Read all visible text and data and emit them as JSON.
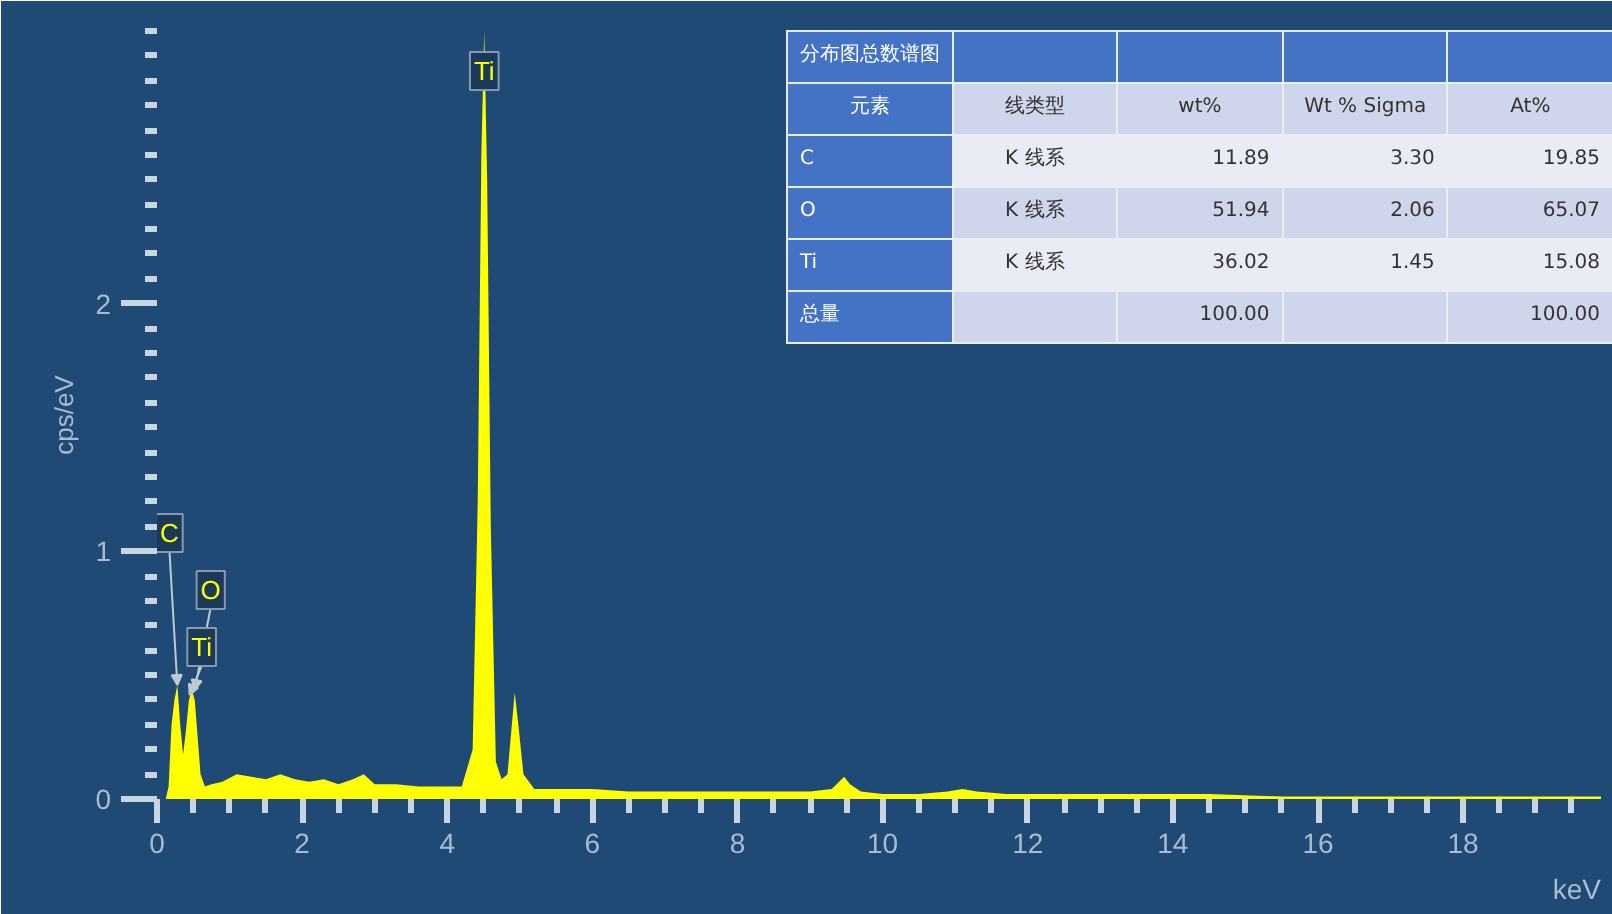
{
  "chart_data": {
    "type": "area",
    "xlabel": "keV",
    "ylabel": "cps/eV",
    "x": [
      0,
      0.12,
      0.16,
      0.2,
      0.24,
      0.28,
      0.32,
      0.36,
      0.4,
      0.44,
      0.48,
      0.52,
      0.56,
      0.6,
      0.66,
      0.75,
      0.9,
      1.1,
      1.3,
      1.5,
      1.7,
      1.9,
      2.1,
      2.3,
      2.5,
      2.7,
      2.85,
      3.0,
      3.3,
      3.6,
      3.9,
      4.2,
      4.35,
      4.42,
      4.47,
      4.51,
      4.55,
      4.6,
      4.67,
      4.75,
      4.83,
      4.89,
      4.93,
      4.98,
      5.05,
      5.2,
      5.6,
      6.0,
      6.5,
      7.0,
      7.5,
      8.0,
      8.5,
      9.0,
      9.3,
      9.4,
      9.47,
      9.55,
      9.7,
      10.0,
      10.5,
      10.9,
      11.1,
      11.3,
      11.7,
      12.5,
      13.5,
      14.5,
      15.5,
      16.5,
      17.5,
      18.5,
      19.5,
      19.9
    ],
    "series": [
      {
        "color": "#ffff00",
        "values": [
          0,
          0,
          0.05,
          0.3,
          0.4,
          0.46,
          0.3,
          0.18,
          0.28,
          0.4,
          0.44,
          0.4,
          0.25,
          0.1,
          0.05,
          0.06,
          0.07,
          0.1,
          0.09,
          0.08,
          0.1,
          0.08,
          0.07,
          0.08,
          0.06,
          0.08,
          0.1,
          0.06,
          0.06,
          0.05,
          0.05,
          0.05,
          0.2,
          1.2,
          2.6,
          3.1,
          2.5,
          1.1,
          0.15,
          0.08,
          0.1,
          0.3,
          0.43,
          0.3,
          0.1,
          0.04,
          0.04,
          0.04,
          0.03,
          0.03,
          0.03,
          0.03,
          0.03,
          0.03,
          0.04,
          0.07,
          0.09,
          0.06,
          0.03,
          0.02,
          0.02,
          0.03,
          0.04,
          0.03,
          0.02,
          0.02,
          0.02,
          0.02,
          0.01,
          0.01,
          0.01,
          0.01,
          0.01,
          0.01
        ]
      }
    ],
    "xlim": [
      0,
      19.9
    ],
    "ylim": [
      0,
      3.1
    ],
    "xticks": [
      0,
      2,
      4,
      6,
      8,
      10,
      12,
      14,
      16,
      18
    ],
    "yticks": [
      0,
      1,
      2
    ],
    "grid": false,
    "annotations": [
      {
        "text": "Ti",
        "x": 4.51,
        "y": 3.1
      },
      {
        "text": "C",
        "x": 0.28,
        "y": 0.46
      },
      {
        "text": "O",
        "x": 0.52,
        "y": 0.44
      },
      {
        "text": "Ti",
        "x": 0.45,
        "y": 0.42
      },
      "分布图总数谱图",
      "元素",
      "线类型",
      "wt%",
      "Wt % Sigma",
      "At%",
      "C",
      "K 线系",
      "11.89",
      "3.30",
      "19.85",
      "O",
      "K 线系",
      "51.94",
      "2.06",
      "65.07",
      "Ti",
      "K 线系",
      "36.02",
      "1.45",
      "15.08",
      "总量",
      "100.00",
      "100.00"
    ]
  }
}
